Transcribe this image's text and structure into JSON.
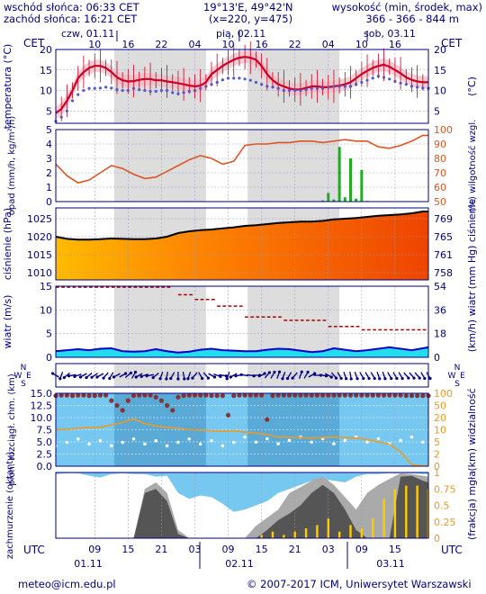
{
  "header": {
    "sunrise": "wschód słońca: 06:33 CET",
    "sunset": "zachód słońca: 16:21 CET",
    "coords": "19°13'E, 49°42'N",
    "grid": "(x=220, y=475)",
    "altitude_label": "wysokość (min, środek, max)",
    "altitude_values": "366 - 366 - 844 m"
  },
  "footer": {
    "email": "meteo@icm.edu.pl",
    "copyright": "© 2007-2017 ICM, Uniwersytet Warszawski"
  },
  "colors": {
    "frame": "#000080",
    "temp_line": "#cc0022",
    "dew_dots": "#5555cc",
    "precip_bar": "#22aa22",
    "humidity_line": "#dd5522",
    "pressure_line": "#000000",
    "wind_fill": "#22ddee",
    "wind_line": "#0000cc",
    "gust_marks": "#aa0000",
    "cloud_dots": "#883333",
    "visibility_line": "#ee9922",
    "fog_bars": "#ffcc00",
    "night_shade": "#dddddd",
    "sky_blue": "#77c8f0"
  },
  "chart_data": [
    {
      "panel": "top_axis",
      "timezone_left": "CET",
      "timezone_right": "CET",
      "day_labels": [
        "czw, 01.11",
        "pią, 02.11",
        "sob, 03.11"
      ],
      "hour_ticks": [
        "10",
        "16",
        "22",
        "04",
        "10",
        "16",
        "22",
        "04",
        "10",
        "16"
      ]
    },
    {
      "panel": "temperature",
      "type": "line",
      "ylabel_left": "temperatura (°C)",
      "ylabel_right": "(°C)",
      "ylim": [
        2,
        20
      ],
      "yticks": [
        5,
        10,
        15,
        20
      ],
      "x_hours": [
        3,
        4,
        5,
        6,
        7,
        8,
        9,
        10,
        11,
        12,
        13,
        14,
        15,
        16,
        17,
        18,
        19,
        20,
        21,
        22,
        23,
        24,
        25,
        26,
        27,
        28,
        29,
        30,
        31,
        32,
        33,
        34,
        35,
        36,
        37,
        38,
        39,
        40,
        41,
        42,
        43,
        44,
        45,
        46,
        47,
        48,
        49,
        50,
        51,
        52,
        53,
        54,
        55,
        56,
        57,
        58,
        59,
        60,
        61,
        62,
        63,
        64,
        65,
        66,
        67,
        68,
        69,
        70
      ],
      "series": [
        {
          "kind": "temperature",
          "values": [
            4.5,
            5.5,
            7.5,
            10,
            13,
            14.5,
            15.5,
            16,
            16,
            15.5,
            14.5,
            13.2,
            12.5,
            12.2,
            12.3,
            12.6,
            12.8,
            12.8,
            12.5,
            12.5,
            12.2,
            12,
            11.8,
            11.5,
            11.2,
            11,
            11.2,
            12,
            14,
            15,
            16,
            16.8,
            17.5,
            18,
            18.2,
            18,
            17.5,
            16,
            14,
            12.5,
            11.5,
            11,
            10.5,
            10.2,
            10.3,
            10.6,
            11,
            11,
            10.8,
            10.8,
            11,
            11.2,
            11.5,
            12,
            13,
            14,
            14.8,
            15.5,
            16,
            16.3,
            15.8,
            15,
            14.2,
            13.2,
            12.6,
            12.2,
            12,
            12
          ]
        },
        {
          "kind": "dew_point",
          "values": [
            2.5,
            3.5,
            5,
            7.5,
            9,
            10,
            10.5,
            10.5,
            10.6,
            10.8,
            10.6,
            10.2,
            10,
            10,
            10.5,
            10.2,
            10,
            9.8,
            9.8,
            10,
            10,
            9.5,
            9.2,
            9.5,
            9.8,
            10,
            10.5,
            11,
            11.5,
            12,
            12.6,
            13,
            13,
            13,
            12.8,
            12.5,
            12,
            11.5,
            11,
            10.8,
            10.5,
            10,
            10,
            10,
            10,
            10.2,
            10.5,
            10.5,
            10.5,
            10.8,
            11,
            11,
            11,
            11,
            11.5,
            12,
            12.5,
            13,
            13.5,
            13.2,
            12.8,
            12.2,
            11.8,
            11.5,
            11,
            10.8,
            10.6,
            10.5
          ]
        }
      ]
    },
    {
      "panel": "precipitation_humidity",
      "type": "line",
      "ylabel_left": "opad (mm/h, kg/m²/h)",
      "ylabel_right": "(%) wilgotność wzgl.",
      "ylim_left": [
        0,
        5
      ],
      "yticks_left": [
        0,
        1,
        2,
        3,
        4,
        5
      ],
      "ylim_right": [
        50,
        100
      ],
      "yticks_right": [
        50,
        60,
        70,
        80,
        90,
        100
      ],
      "precipitation": {
        "x_hours": [
          51,
          52,
          53,
          54,
          55,
          56,
          57,
          58,
          59
        ],
        "values": [
          0.08,
          0.6,
          0.15,
          3.8,
          0.3,
          3.0,
          0.2,
          2.2,
          0.05
        ]
      },
      "humidity": {
        "x_hours": [
          3,
          5,
          7,
          9,
          11,
          13,
          15,
          17,
          19,
          21,
          23,
          25,
          27,
          29,
          31,
          33,
          35,
          37,
          39,
          41,
          43,
          45,
          47,
          49,
          51,
          53,
          55,
          57,
          59,
          61,
          63,
          65,
          67,
          69,
          70
        ],
        "values": [
          76,
          68,
          63,
          65,
          70,
          75,
          73,
          69,
          66,
          67,
          71,
          75,
          79,
          82,
          80,
          76,
          78,
          89,
          90,
          90,
          91,
          91,
          92,
          92,
          91,
          92,
          93,
          92,
          92,
          88,
          87,
          89,
          92,
          96,
          96
        ]
      }
    },
    {
      "panel": "pressure",
      "type": "area",
      "ylabel_left": "ciśnienie (hPa)",
      "ylabel_right": "(mm Hg) ciśnienie",
      "ylim_left": [
        1008,
        1028
      ],
      "yticks_left": [
        1010,
        1015,
        1020,
        1025
      ],
      "yticks_right": [
        "758",
        "761",
        "765",
        "769"
      ],
      "x_hours": [
        3,
        5,
        7,
        9,
        11,
        13,
        15,
        17,
        19,
        21,
        23,
        25,
        27,
        29,
        31,
        33,
        35,
        37,
        39,
        41,
        43,
        45,
        47,
        49,
        51,
        53,
        55,
        57,
        59,
        61,
        63,
        65,
        67,
        69,
        70
      ],
      "values": [
        1020,
        1019.4,
        1019.2,
        1019.2,
        1019.3,
        1019.5,
        1019.4,
        1019.3,
        1019.3,
        1019.5,
        1020,
        1021,
        1021.5,
        1021.8,
        1022,
        1022.3,
        1022.6,
        1023,
        1023.2,
        1023.5,
        1023.8,
        1024,
        1024.2,
        1024.2,
        1024.4,
        1024.8,
        1025,
        1025.2,
        1025.5,
        1025.8,
        1026,
        1026.2,
        1026.5,
        1027,
        1027
      ]
    },
    {
      "panel": "wind",
      "type": "area",
      "ylabel_left": "wiatr (m/s)",
      "ylabel_right": "(km/h) wiatr",
      "ylim_left": [
        0,
        15
      ],
      "yticks_left": [
        0,
        5,
        10,
        15
      ],
      "yticks_right": [
        0,
        18,
        36,
        54
      ],
      "x_hours": [
        3,
        5,
        7,
        9,
        11,
        13,
        15,
        17,
        19,
        21,
        23,
        25,
        27,
        29,
        31,
        33,
        35,
        37,
        39,
        41,
        43,
        45,
        47,
        49,
        51,
        53,
        55,
        57,
        59,
        61,
        63,
        65,
        67,
        69,
        70
      ],
      "speed": [
        1.3,
        1.5,
        1.7,
        1.5,
        1.8,
        1.9,
        1.3,
        1.2,
        1.3,
        1.7,
        1.3,
        1.0,
        1.2,
        1.6,
        1.8,
        1.5,
        1.4,
        1.3,
        1.3,
        1.6,
        1.8,
        1.7,
        1.4,
        1.1,
        1.3,
        1.9,
        1.6,
        1.3,
        1.5,
        1.8,
        2.1,
        1.8,
        1.5,
        1.9,
        2.1
      ],
      "gust_segments": [
        {
          "from": 3,
          "to": 24,
          "value": 14.8
        },
        {
          "from": 25,
          "to": 28,
          "value": 13.2
        },
        {
          "from": 28,
          "to": 32,
          "value": 12.2
        },
        {
          "from": 32,
          "to": 37,
          "value": 10.8
        },
        {
          "from": 37,
          "to": 44,
          "value": 8.5
        },
        {
          "from": 44,
          "to": 52,
          "value": 7.8
        },
        {
          "from": 52,
          "to": 58,
          "value": 6.5
        },
        {
          "from": 58,
          "to": 70,
          "value": 5.8
        }
      ]
    },
    {
      "panel": "wind_direction",
      "type": "scatter",
      "labels": [
        "N",
        "W",
        "E",
        "S"
      ],
      "x_hours": [
        3,
        4,
        5,
        6,
        7,
        8,
        9,
        10,
        11,
        12,
        13,
        14,
        15,
        16,
        17,
        18,
        19,
        20,
        21,
        22,
        23,
        24,
        25,
        26,
        27,
        28,
        29,
        30,
        31,
        32,
        33,
        34,
        35,
        36,
        37,
        38,
        39,
        40,
        41,
        42,
        43,
        44,
        45,
        46,
        47,
        48,
        49,
        50,
        51,
        52,
        53,
        54,
        55,
        56,
        57,
        58,
        59,
        60,
        61,
        62,
        63,
        64,
        65,
        66,
        67,
        68,
        69,
        70
      ],
      "direction_deg": [
        300,
        200,
        230,
        260,
        250,
        240,
        230,
        235,
        240,
        220,
        210,
        240,
        60,
        50,
        30,
        240,
        250,
        260,
        230,
        200,
        190,
        210,
        180,
        170,
        200,
        220,
        150,
        140,
        120,
        110,
        100,
        200,
        240,
        260,
        280,
        100,
        90,
        60,
        40,
        30,
        20,
        200,
        210,
        220,
        20,
        30,
        60,
        90,
        100,
        120,
        140,
        150,
        160,
        170,
        160,
        150,
        150,
        150,
        160,
        160,
        150,
        150,
        150,
        140,
        140,
        140,
        150,
        150
      ]
    },
    {
      "panel": "clouds_visibility",
      "type": "scatter",
      "ylabel_left": "pion. rozciągł. chm. (km)",
      "ylabel_right": "(km) widzialność",
      "ylim_left": [
        0,
        15
      ],
      "yticks_left": [
        "0.0",
        "2.5",
        "5.0",
        "7.5",
        "10.0",
        "12.5",
        "15.0"
      ],
      "ylim_right": [
        0,
        100
      ],
      "yticks_right": [
        0,
        2,
        5,
        10,
        20,
        50,
        100
      ],
      "cloud_top": {
        "x_hours": [
          3,
          4,
          5,
          6,
          7,
          8,
          9,
          10,
          11,
          12,
          13,
          14,
          15,
          16,
          17,
          18,
          19,
          20,
          21,
          22,
          23,
          24,
          25,
          26,
          27,
          28,
          29,
          30,
          31,
          32,
          33,
          34,
          35,
          36,
          37,
          38,
          39,
          40,
          41,
          42,
          43,
          44,
          45,
          46,
          47,
          48,
          49,
          50,
          51,
          52,
          53,
          54,
          55,
          56,
          57,
          58,
          59,
          60,
          61,
          62,
          63,
          64,
          65,
          66,
          67,
          68,
          69,
          70
        ],
        "values": [
          14.5,
          14.6,
          14.6,
          14.5,
          14.6,
          14.6,
          14.5,
          14.5,
          14.6,
          14.6,
          13.5,
          12.5,
          11.5,
          13.5,
          14.5,
          14.6,
          14.6,
          14.6,
          14.2,
          13.5,
          12.5,
          11.5,
          14.2,
          14.5,
          14.6,
          14.6,
          14.6,
          14.6,
          14.5,
          14.5,
          14.5,
          10.5,
          14.5,
          14.6,
          14.6,
          14.6,
          14.6,
          14.6,
          9.6,
          14.5,
          14.6,
          14.6,
          14.6,
          14.6,
          14.6,
          14.6,
          14.6,
          14.6,
          14.6,
          14.6,
          14.6,
          14.6,
          14.6,
          14.6,
          14.6,
          14.6,
          14.6,
          14.6,
          14.6,
          14.6,
          14.6,
          14.6,
          14.6,
          14.5,
          14.5,
          14.5,
          14.5,
          14.5
        ]
      },
      "visibility": {
        "x_hours": [
          3,
          5,
          7,
          9,
          11,
          13,
          15,
          17,
          19,
          21,
          23,
          25,
          27,
          29,
          31,
          33,
          35,
          37,
          39,
          41,
          43,
          45,
          47,
          49,
          51,
          53,
          55,
          57,
          59,
          61,
          63,
          65,
          67,
          69,
          70
        ],
        "values": [
          7.5,
          7.6,
          7.8,
          8.0,
          8.0,
          8.5,
          9.0,
          9.7,
          8.8,
          8.3,
          8.0,
          7.8,
          7.5,
          7.4,
          7.3,
          7.2,
          7.3,
          7.0,
          6.8,
          6.5,
          6.0,
          6.0,
          5.9,
          5.8,
          5.9,
          6.0,
          5.9,
          5.8,
          5.5,
          5.0,
          4.5,
          3.0,
          0.3,
          0.1,
          0.1
        ]
      }
    },
    {
      "panel": "cloud_cover_fog",
      "type": "area",
      "ylabel_left": "zachmurzenie (oktanty)",
      "ylabel_right": "(frakcja) mgła",
      "ylim_left": [
        0,
        8
      ],
      "ylim_right": [
        0,
        1
      ],
      "yticks_right": [
        "0",
        "0.25",
        "0.5",
        "0.75",
        "1"
      ],
      "x_hours": [
        3,
        5,
        7,
        9,
        11,
        13,
        15,
        17,
        19,
        21,
        23,
        25,
        27,
        29,
        31,
        33,
        35,
        37,
        39,
        41,
        43,
        45,
        47,
        49,
        51,
        53,
        55,
        57,
        59,
        61,
        63,
        65,
        67,
        69,
        70
      ],
      "total_cover": [
        7.8,
        7.9,
        7.9,
        7.6,
        7.4,
        7.8,
        7.9,
        7.8,
        7.8,
        7.5,
        7.6,
        5.5,
        4.8,
        5.2,
        5.0,
        4.2,
        3.2,
        3.5,
        4.0,
        4.5,
        5.5,
        6.0,
        6.5,
        7.0,
        7.2,
        7.0,
        6.8,
        7.5,
        7.8,
        7.8,
        7.9,
        7.9,
        7.9,
        7.8,
        7.8
      ],
      "high_cover": [
        0,
        0,
        0,
        0,
        0,
        0,
        0,
        0,
        6.0,
        6.8,
        5.5,
        1.0,
        0,
        0,
        0,
        0,
        0,
        0,
        1.5,
        2.5,
        3.5,
        5.5,
        6.2,
        7.0,
        7.5,
        6.5,
        5.0,
        3.5,
        5.5,
        6.5,
        7.2,
        7.9,
        7.8,
        7.6,
        7.5
      ],
      "mid_cover": [
        0,
        0,
        0,
        0,
        0,
        0,
        0,
        0,
        5.5,
        6.0,
        4.5,
        0.5,
        0,
        0,
        0,
        0,
        0,
        0,
        0,
        1.0,
        2.2,
        3.0,
        4.0,
        5.5,
        6.5,
        5.5,
        3.5,
        1.0,
        0,
        0,
        0,
        7.5,
        7.6,
        7.0,
        6.8
      ],
      "fog_fraction": {
        "x_hours": [
          40,
          42,
          44,
          46,
          48,
          50,
          52,
          54,
          56,
          58,
          60,
          62,
          64,
          66,
          68,
          70
        ],
        "values": [
          0.05,
          0.1,
          0.05,
          0.1,
          0.15,
          0.2,
          0.3,
          0.1,
          0.2,
          0.15,
          0.3,
          0.6,
          0.75,
          0.8,
          0.8,
          0.75
        ]
      }
    },
    {
      "panel": "bottom_axis",
      "timezone_left": "UTC",
      "timezone_right": "UTC",
      "hour_ticks": [
        "09",
        "15",
        "21",
        "03",
        "09",
        "15",
        "21",
        "03",
        "09",
        "15"
      ],
      "date_labels": [
        "01.11",
        "02.11",
        "03.11"
      ]
    }
  ]
}
